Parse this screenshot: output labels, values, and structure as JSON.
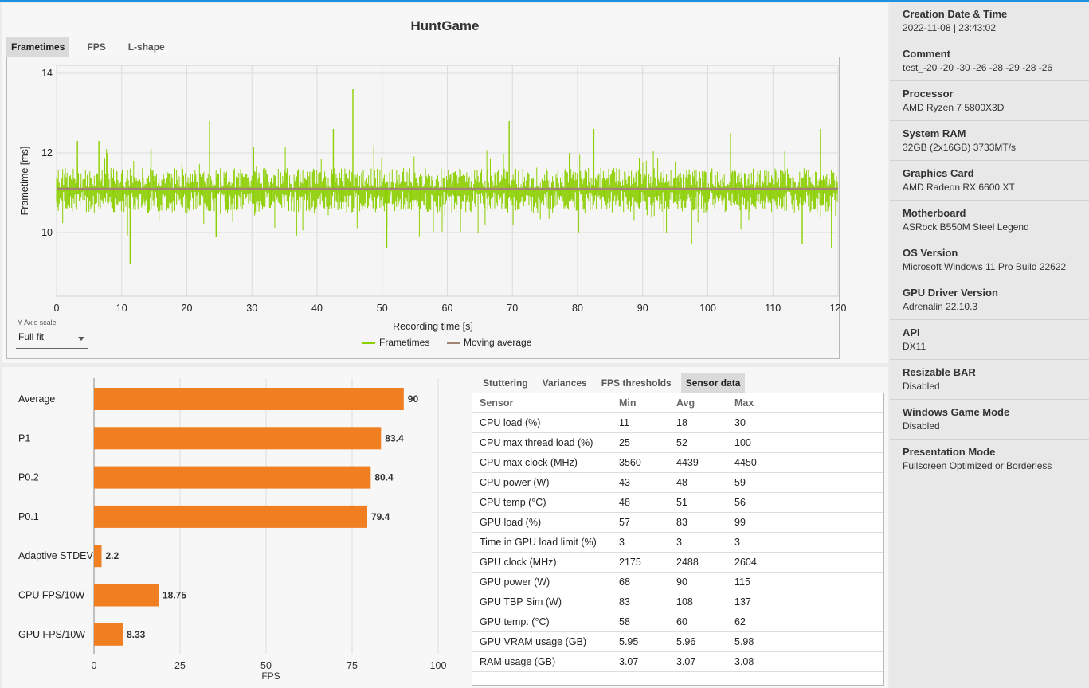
{
  "app": {
    "title": "HuntGame"
  },
  "top_tabs": [
    "Frametimes",
    "FPS",
    "L-shape"
  ],
  "frametime_chart": {
    "type": "line",
    "ylabel": "Frametime [ms]",
    "xlabel": "Recording time [s]",
    "xlim": [
      0,
      120
    ],
    "ylim": [
      8.4,
      14.2
    ],
    "x_ticks": [
      "0",
      "10",
      "20",
      "30",
      "40",
      "50",
      "60",
      "70",
      "80",
      "90",
      "100",
      "110",
      "120"
    ],
    "y_ticks": [
      "14",
      "12",
      "10"
    ],
    "grid": true,
    "legend": [
      "Frametimes",
      "Moving average"
    ],
    "series_colors": {
      "Frametimes": "#8ccf00",
      "Moving average": "#a08474"
    },
    "moving_average_value": 11.1,
    "frametime_band": [
      10.5,
      11.6
    ],
    "spikes": [
      {
        "x": 3.2,
        "y": 12.3,
        "dir": "up"
      },
      {
        "x": 6.5,
        "y": 12.3,
        "dir": "up"
      },
      {
        "x": 11.3,
        "y": 9.2,
        "dir": "down"
      },
      {
        "x": 14.5,
        "y": 12.1,
        "dir": "up"
      },
      {
        "x": 23.5,
        "y": 12.8,
        "dir": "up"
      },
      {
        "x": 24.5,
        "y": 9.9,
        "dir": "down"
      },
      {
        "x": 45.5,
        "y": 13.6,
        "dir": "up"
      },
      {
        "x": 50.7,
        "y": 9.6,
        "dir": "down"
      },
      {
        "x": 42.5,
        "y": 12.6,
        "dir": "up"
      },
      {
        "x": 69.5,
        "y": 12.8,
        "dir": "up"
      },
      {
        "x": 82.5,
        "y": 12.6,
        "dir": "up"
      },
      {
        "x": 97.5,
        "y": 9.7,
        "dir": "down"
      },
      {
        "x": 103.5,
        "y": 12.5,
        "dir": "up"
      },
      {
        "x": 114.5,
        "y": 9.7,
        "dir": "down"
      },
      {
        "x": 117.3,
        "y": 12.6,
        "dir": "up"
      },
      {
        "x": 119.0,
        "y": 9.6,
        "dir": "down"
      }
    ]
  },
  "y_axis_scale": {
    "label": "Y-Axis scale",
    "value": "Full fit"
  },
  "bar_chart": {
    "type": "bar",
    "xlabel": "FPS",
    "xlim": [
      0,
      100
    ],
    "x_ticks": [
      "0",
      "25",
      "50",
      "75",
      "100"
    ],
    "bar_color": "#f07f22",
    "categories": [
      "Average",
      "P1",
      "P0.2",
      "P0.1",
      "Adaptive STDEV",
      "CPU FPS/10W",
      "GPU FPS/10W"
    ],
    "values": [
      90,
      83.4,
      80.4,
      79.4,
      2.2,
      18.75,
      8.33
    ],
    "value_labels": [
      "90",
      "83.4",
      "80.4",
      "79.4",
      "2.2",
      "18.75",
      "8.33"
    ]
  },
  "bottom_tabs": [
    "Stuttering",
    "Variances",
    "FPS thresholds",
    "Sensor data"
  ],
  "sensor_table": {
    "headers": [
      "Sensor",
      "Min",
      "Avg",
      "Max"
    ],
    "rows": [
      [
        "CPU load (%)",
        "11",
        "18",
        "30"
      ],
      [
        "CPU max thread load (%)",
        "25",
        "52",
        "100"
      ],
      [
        "CPU max clock (MHz)",
        "3560",
        "4439",
        "4450"
      ],
      [
        "CPU power (W)",
        "43",
        "48",
        "59"
      ],
      [
        "CPU temp (°C)",
        "48",
        "51",
        "56"
      ],
      [
        "GPU load (%)",
        "57",
        "83",
        "99"
      ],
      [
        "Time in GPU load limit (%)",
        "3",
        "3",
        "3"
      ],
      [
        "GPU clock (MHz)",
        "2175",
        "2488",
        "2604"
      ],
      [
        "GPU power (W)",
        "68",
        "90",
        "115"
      ],
      [
        "GPU TBP Sim (W)",
        "83",
        "108",
        "137"
      ],
      [
        "GPU temp. (°C)",
        "58",
        "60",
        "62"
      ],
      [
        "GPU VRAM usage (GB)",
        "5.95",
        "5.96",
        "5.98"
      ],
      [
        "RAM usage (GB)",
        "3.07",
        "3.07",
        "3.08"
      ]
    ]
  },
  "sidebar": {
    "entries": [
      {
        "label": "Creation Date & Time",
        "value": "2022-11-08  |  23:43:02"
      },
      {
        "label": "Comment",
        "value": "test_-20  -20 -30 -26 -28 -29 -28 -26"
      },
      {
        "label": "Processor",
        "value": "AMD Ryzen 7 5800X3D"
      },
      {
        "label": "System RAM",
        "value": "32GB (2x16GB) 3733MT/s"
      },
      {
        "label": "Graphics Card",
        "value": "AMD Radeon RX 6600 XT"
      },
      {
        "label": "Motherboard",
        "value": "ASRock B550M Steel Legend"
      },
      {
        "label": "OS Version",
        "value": "Microsoft Windows 11 Pro Build 22622"
      },
      {
        "label": "GPU Driver Version",
        "value": "Adrenalin 22.10.3"
      },
      {
        "label": "API",
        "value": "DX11"
      },
      {
        "label": "Resizable BAR",
        "value": "Disabled"
      },
      {
        "label": "Windows Game Mode",
        "value": "Disabled"
      },
      {
        "label": "Presentation Mode",
        "value": "Fullscreen Optimized or Borderless"
      }
    ]
  }
}
